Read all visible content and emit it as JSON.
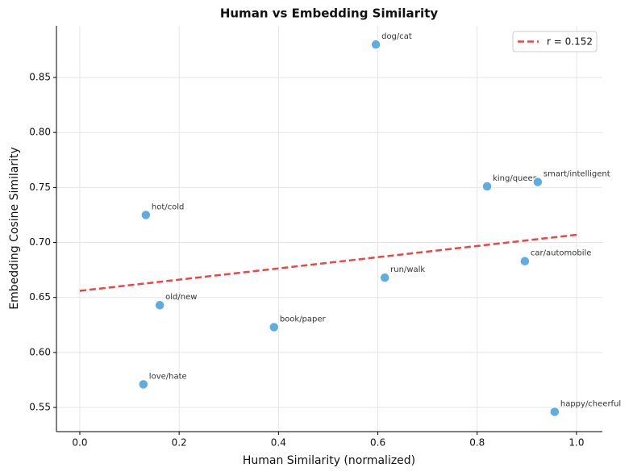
{
  "chart_data": {
    "type": "scatter",
    "title": "Human vs Embedding Similarity",
    "x_label": "Human Similarity (normalized)",
    "y_label": "Embedding Cosine Similarity",
    "points": {
      "color": "#5dade2",
      "labels": [
        "dog/cat",
        "king/queen",
        "smart/intelligent",
        "hot/cold",
        "car/automobile",
        "run/walk",
        "old/new",
        "book/paper",
        "love/hate",
        "happy/cheerful"
      ],
      "x": [
        0.596,
        0.82,
        0.922,
        0.133,
        0.896,
        0.614,
        0.161,
        0.391,
        0.128,
        0.956
      ],
      "values": [
        0.88,
        0.751,
        0.755,
        0.725,
        0.683,
        0.668,
        0.643,
        0.623,
        0.571,
        0.546
      ]
    },
    "trend": {
      "name": "r = 0.152",
      "color": "#ef4444",
      "x": [
        0,
        1
      ],
      "values": [
        0.656,
        0.707
      ]
    },
    "xlim": [
      -0.047,
      1.052
    ],
    "ylim": [
      0.528,
      0.897
    ],
    "xticks": [
      {
        "value": 0,
        "label": "0.0"
      },
      0.2,
      0.4,
      0.6,
      0.8,
      {
        "value": 1,
        "label": "1.0"
      }
    ],
    "yticks": [
      0.55,
      {
        "value": 0.6,
        "label": "0.60"
      },
      0.65,
      {
        "value": 0.7,
        "label": "0.70"
      },
      0.75,
      {
        "value": 0.8,
        "label": "0.80"
      },
      0.85
    ],
    "grid": true,
    "legend": "upper right"
  }
}
